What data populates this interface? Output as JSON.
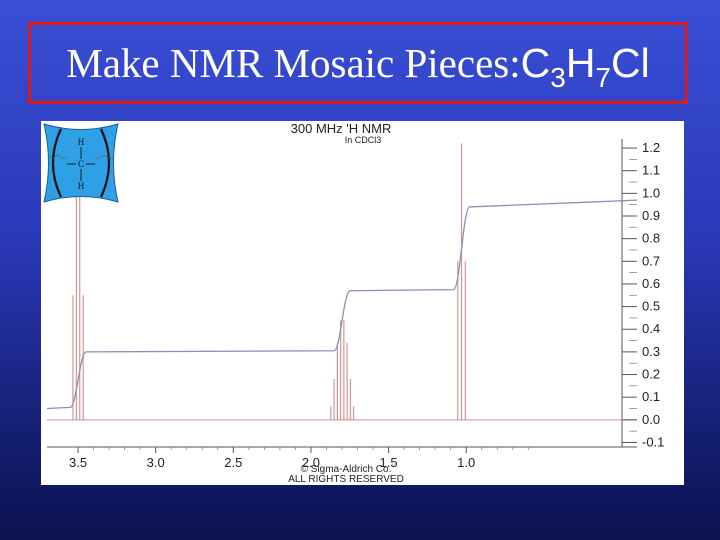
{
  "slide": {
    "title_main": "Make NMR Mosaic Pieces: ",
    "formula": {
      "c": "C",
      "c_count": "3",
      "h": "H",
      "h_count": "7",
      "cl": "Cl"
    },
    "colors": {
      "background": "#2a38b8",
      "title_border": "#e01818",
      "title_text": "#ffffff"
    }
  },
  "chart_data": {
    "type": "line",
    "title": "300 MHz 'H NMR",
    "subtitle": "In CDCl3",
    "footer": [
      "© Sigma-Aldrich Co.",
      "ALL RIGHTS RESERVED"
    ],
    "x_axis": {
      "reversed": true,
      "range": [
        3.7,
        -0.1
      ],
      "tick_labels": [
        "3.5",
        "3.0",
        "2.5",
        "2.0",
        "1.5",
        "1.0"
      ],
      "tick_values": [
        3.5,
        3.0,
        2.5,
        2.0,
        1.5,
        1.0
      ]
    },
    "y_axis": {
      "position": "right",
      "range": [
        -0.12,
        1.24
      ],
      "tick_labels": [
        "1.2",
        "1.1",
        "1.0",
        "0.9",
        "0.8",
        "0.7",
        "0.6",
        "0.5",
        "0.4",
        "0.3",
        "0.2",
        "0.1",
        "0.0",
        "-0.1"
      ],
      "tick_values": [
        1.2,
        1.1,
        1.0,
        0.9,
        0.8,
        0.7,
        0.6,
        0.5,
        0.4,
        0.3,
        0.2,
        0.1,
        0.0,
        -0.1
      ]
    },
    "series": [
      {
        "kind": "spectrum",
        "color": "#d98a8a",
        "peaks": [
          {
            "center": 3.5,
            "lines": [
              3.533,
              3.511,
              3.489,
              3.467
            ],
            "heights": [
              0.55,
              1.1,
              1.1,
              0.55
            ]
          },
          {
            "center": 1.8,
            "lines": [
              1.872,
              1.851,
              1.83,
              1.809,
              1.788,
              1.767,
              1.746,
              1.725
            ],
            "heights": [
              0.06,
              0.18,
              0.34,
              0.44,
              0.44,
              0.34,
              0.18,
              0.06
            ]
          },
          {
            "center": 1.03,
            "lines": [
              1.054,
              1.03,
              1.006
            ],
            "heights": [
              0.7,
              1.22,
              0.7
            ]
          }
        ],
        "baseline": 0.0
      },
      {
        "kind": "integral",
        "color": "#8a8fb6",
        "steps": [
          {
            "x": 3.7,
            "y": 0.05
          },
          {
            "x": 3.5,
            "y": 0.3
          },
          {
            "x": 1.8,
            "y": 0.57
          },
          {
            "x": 1.03,
            "y": 0.94
          },
          {
            "x": -0.1,
            "y": 0.97
          }
        ]
      }
    ],
    "annotations": [
      {
        "text": "H",
        "kind": "inset-structure-label"
      },
      {
        "text": "C",
        "kind": "inset-structure-label"
      },
      {
        "text": "H",
        "kind": "inset-structure-label"
      }
    ],
    "grid": false,
    "legend": "none"
  }
}
